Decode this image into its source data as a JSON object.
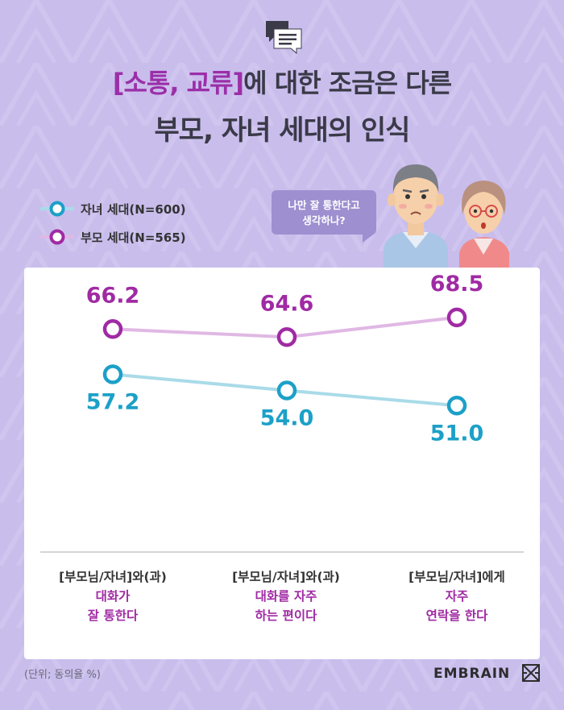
{
  "title": {
    "line1_accent": "[소통, 교류]",
    "line1_rest": "에 대한 조금은 다른",
    "line2": "부모, 자녀 세대의 인식"
  },
  "bubble": {
    "line1": "나만 잘 통한다고",
    "line2": "생각하나?"
  },
  "colors": {
    "parent_series": "#a02aa4",
    "child_series": "#1ca0c8",
    "parent_line": "#e0b8e4",
    "child_line": "#a9dbe8",
    "background": "#c9bdec",
    "accent_text": "#9b2fa8"
  },
  "chart_data": {
    "type": "line",
    "categories": [
      [
        "[부모님/자녀]와(과)",
        "대화가",
        "잘 통한다"
      ],
      [
        "[부모님/자녀]와(과)",
        "대화를 자주",
        "하는 편이다"
      ],
      [
        "[부모님/자녀]에게",
        "자주",
        "연락을 한다"
      ]
    ],
    "series": [
      {
        "name": "부모 세대(N=565)",
        "values": [
          66.2,
          64.6,
          68.5
        ],
        "labels": [
          "66.2",
          "64.6",
          "68.5"
        ]
      },
      {
        "name": "자녀 세대(N=600)",
        "values": [
          57.2,
          54.0,
          51.0
        ],
        "labels": [
          "57.2",
          "54.0",
          "51.0"
        ]
      }
    ],
    "unit_note": "(단위; 동의율 %)"
  },
  "legend": {
    "child": "자녀 세대(N=600)",
    "parent": "부모 세대(N=565)"
  },
  "footer": {
    "note": "(단위; 동의율 %)",
    "brand": "EMBRAIN"
  },
  "icons": {
    "header": "speech-bubbles-icon",
    "brand": "embrain-logo-icon"
  }
}
